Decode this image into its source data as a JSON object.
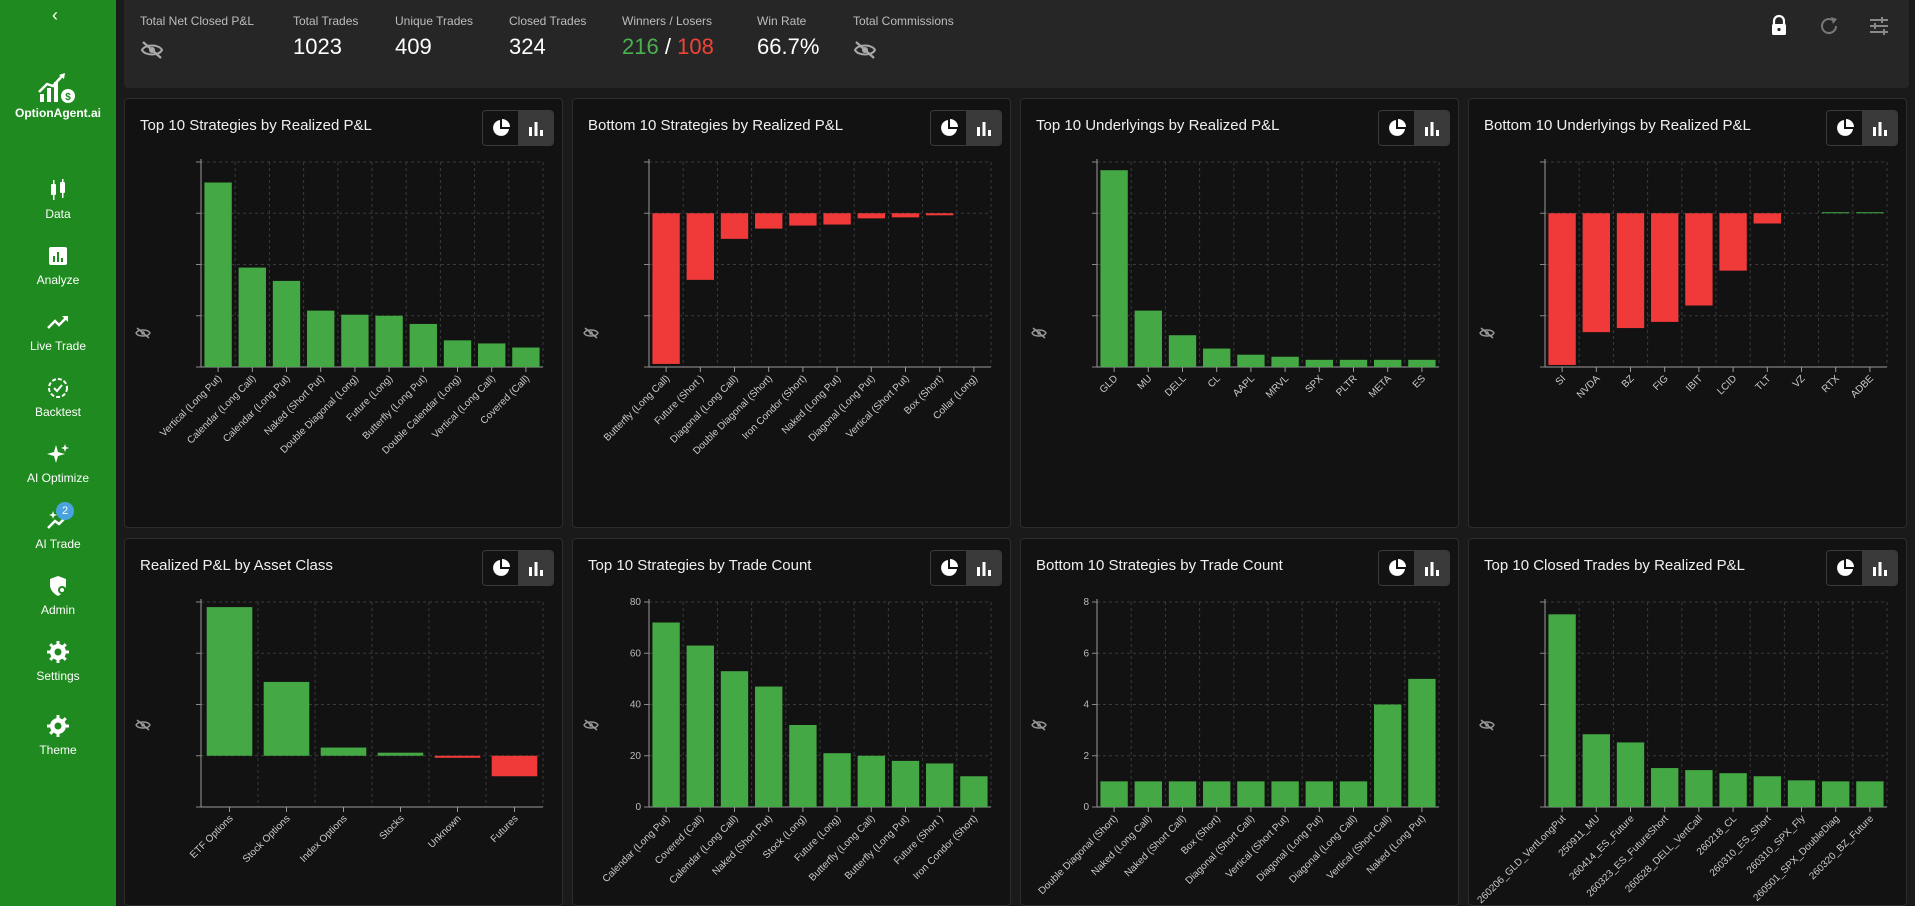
{
  "sidebar": {
    "brand": "OptionAgent.ai",
    "items": [
      {
        "label": "Data",
        "icon": "data-icon"
      },
      {
        "label": "Analyze",
        "icon": "analyze-icon"
      },
      {
        "label": "Live Trade",
        "icon": "live-trade-icon"
      },
      {
        "label": "Backtest",
        "icon": "backtest-icon"
      },
      {
        "label": "AI Optimize",
        "icon": "ai-optimize-icon"
      },
      {
        "label": "AI Trade",
        "icon": "ai-trade-icon",
        "badge": "2"
      },
      {
        "label": "Admin",
        "icon": "admin-icon"
      },
      {
        "label": "Settings",
        "icon": "gear-icon"
      },
      {
        "label": "Theme",
        "icon": "theme-icon"
      }
    ]
  },
  "stats": {
    "net_pnl_label": "Total Net Closed P&L",
    "total_trades_label": "Total Trades",
    "total_trades": "1023",
    "unique_trades_label": "Unique Trades",
    "unique_trades": "409",
    "closed_trades_label": "Closed Trades",
    "closed_trades": "324",
    "winners_losers_label": "Winners / Losers",
    "winners": "216",
    "separator": "/",
    "losers": "108",
    "win_rate_label": "Win Rate",
    "win_rate": "66.7%",
    "commissions_label": "Total Commissions"
  },
  "colors": {
    "sidebar": "#1f8a1f",
    "positive": "#44a844",
    "negative": "#f03a3a"
  },
  "chart_data": [
    {
      "type": "bar",
      "title": "Top 10 Strategies by Realized P&L",
      "categories": [
        "Vertical (Long Put)",
        "Calendar (Long Call)",
        "Calendar (Long Put)",
        "Naked (Short Put)",
        "Double Diagonal (Long)",
        "Future (Long)",
        "Butterfly (Long Put)",
        "Double Calendar (Long)",
        "Vertical (Long Call)",
        "Covered (Call)"
      ],
      "values": [
        180,
        97,
        84,
        55,
        51,
        50,
        42,
        26,
        23,
        19
      ],
      "ylim": [
        0,
        200
      ],
      "show_y_ticks": false
    },
    {
      "type": "bar",
      "title": "Bottom 10 Strategies by Realized P&L",
      "categories": [
        "Butterfly (Long Call)",
        "Future (Short )",
        "Diagonal (Long Call)",
        "Double Diagonal (Short)",
        "Iron Condor (Short)",
        "Naked (Long Put)",
        "Diagonal (Long Put)",
        "Vertical (Short Put)",
        "Box (Short)",
        "Collar (Long)"
      ],
      "values": [
        -147,
        -65,
        -25,
        -15,
        -12,
        -11,
        -5,
        -4,
        -2,
        0
      ],
      "ylim": [
        -150,
        50
      ],
      "show_y_ticks": false
    },
    {
      "type": "bar",
      "title": "Top 10 Underlyings by Realized P&L",
      "categories": [
        "GLD",
        "MU",
        "DELL",
        "CL",
        "AAPL",
        "MRVL",
        "SPX",
        "PLTR",
        "META",
        "ES"
      ],
      "values": [
        192,
        55,
        31,
        18,
        12,
        10,
        7,
        7,
        7,
        7
      ],
      "ylim": [
        0,
        200
      ],
      "show_y_ticks": false
    },
    {
      "type": "bar",
      "title": "Bottom 10 Underlyings by Realized P&L",
      "categories": [
        "SI",
        "NVDA",
        "BZ",
        "FIG",
        "IBIT",
        "LCID",
        "TLT",
        "VZ",
        "RTX",
        "ADBE"
      ],
      "values": [
        -148,
        -116,
        -112,
        -106,
        -90,
        -56,
        -10,
        0,
        1,
        1
      ],
      "ylim": [
        -150,
        50
      ],
      "show_y_ticks": false
    },
    {
      "type": "bar",
      "title": "Realized P&L by Asset Class",
      "categories": [
        "ETF Options",
        "Stock Options",
        "Index Options",
        "Stocks",
        "Unknown",
        "Futures"
      ],
      "values": [
        145,
        72,
        8,
        3,
        -2,
        -20
      ],
      "ylim": [
        -50,
        150
      ],
      "show_y_ticks": false
    },
    {
      "type": "bar",
      "title": "Top 10 Strategies by Trade Count",
      "categories": [
        "Calendar (Long Put)",
        "Covered (Call)",
        "Calendar (Long Call)",
        "Naked (Short Put)",
        "Stock (Long)",
        "Future (Long)",
        "Butterfly (Long Call)",
        "Butterfly (Long Put)",
        "Future (Short )",
        "Iron Condor (Short)"
      ],
      "values": [
        72,
        63,
        53,
        47,
        32,
        21,
        20,
        18,
        17,
        12
      ],
      "ylim": [
        0,
        80
      ],
      "yticks": [
        0,
        20,
        40,
        60,
        80
      ],
      "show_y_ticks": true
    },
    {
      "type": "bar",
      "title": "Bottom 10 Strategies by Trade Count",
      "categories": [
        "Double Diagonal (Short)",
        "Naked (Long Call)",
        "Naked (Short Call)",
        "Box (Short)",
        "Diagonal (Short Call)",
        "Vertical (Short Put)",
        "Diagonal (Long Put)",
        "Diagonal (Long Call)",
        "Vertical (Short Call)",
        "Naked (Long Put)"
      ],
      "values": [
        1,
        1,
        1,
        1,
        1,
        1,
        1,
        1,
        4,
        5
      ],
      "ylim": [
        0,
        8
      ],
      "yticks": [
        0,
        2,
        4,
        6,
        8
      ],
      "show_y_ticks": true
    },
    {
      "type": "bar",
      "title": "Top 10 Closed Trades by Realized P&L",
      "categories": [
        "260206_GLD_VertLongPut",
        "250911_MU",
        "260414_ES_Future",
        "260323_ES_FutureShort",
        "260528_DELL_VertCall",
        "260218_CL",
        "260310_ES_Short",
        "260310_SPX_Fly",
        "260501_SPX_DoubleDiag",
        "260320_BZ_Future"
      ],
      "values": [
        188,
        71,
        63,
        38,
        36,
        33,
        30,
        26,
        25,
        25
      ],
      "ylim": [
        0,
        200
      ],
      "show_y_ticks": false
    }
  ]
}
